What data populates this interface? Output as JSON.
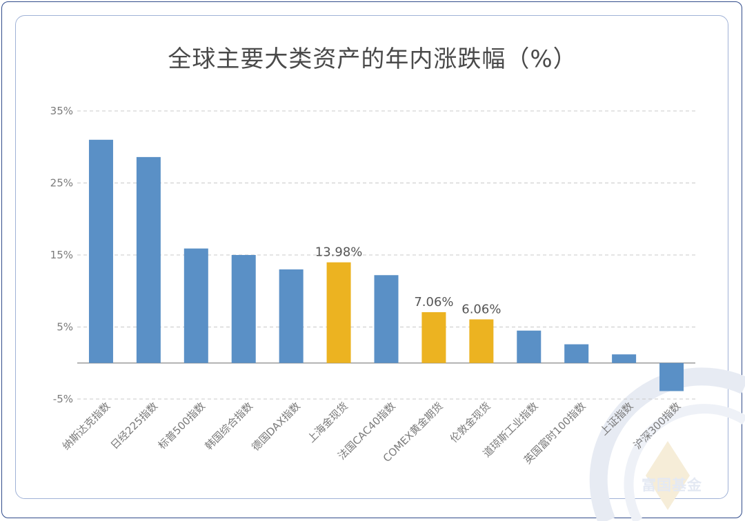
{
  "chart_data": {
    "type": "bar",
    "title": "全球主要大类资产的年内涨跌幅（%）",
    "xlabel": "",
    "ylabel": "",
    "ylim": [
      -5,
      35
    ],
    "yticks": [
      35,
      25,
      15,
      5,
      -5
    ],
    "ytick_labels": [
      "35%",
      "25%",
      "15%",
      "5%",
      "-5%"
    ],
    "grid": true,
    "categories": [
      "纳斯达克指数",
      "日经225指数",
      "标普500指数",
      "韩国综合指数",
      "德国DAX指数",
      "上海金现货",
      "法国CAC40指数",
      "COMEX黄金期货",
      "伦敦金现货",
      "道琼斯工业指数",
      "英国富时100指数",
      "上证指数",
      "沪深300指数"
    ],
    "values": [
      31.0,
      28.6,
      15.9,
      15.0,
      13.0,
      13.98,
      12.2,
      7.06,
      6.06,
      4.5,
      2.6,
      1.2,
      -3.9
    ],
    "highlight": [
      false,
      false,
      false,
      false,
      false,
      true,
      false,
      true,
      true,
      false,
      false,
      false,
      false
    ],
    "data_labels": [
      "",
      "",
      "",
      "",
      "",
      "13.98%",
      "",
      "7.06%",
      "6.06%",
      "",
      "",
      "",
      ""
    ],
    "colors": {
      "bar": "#5a90c6",
      "highlight": "#ecb321",
      "grid": "#c8c8c8",
      "axis": "#888888",
      "text": "#7a7a7a"
    }
  },
  "watermark": {
    "text": "富国基金"
  }
}
